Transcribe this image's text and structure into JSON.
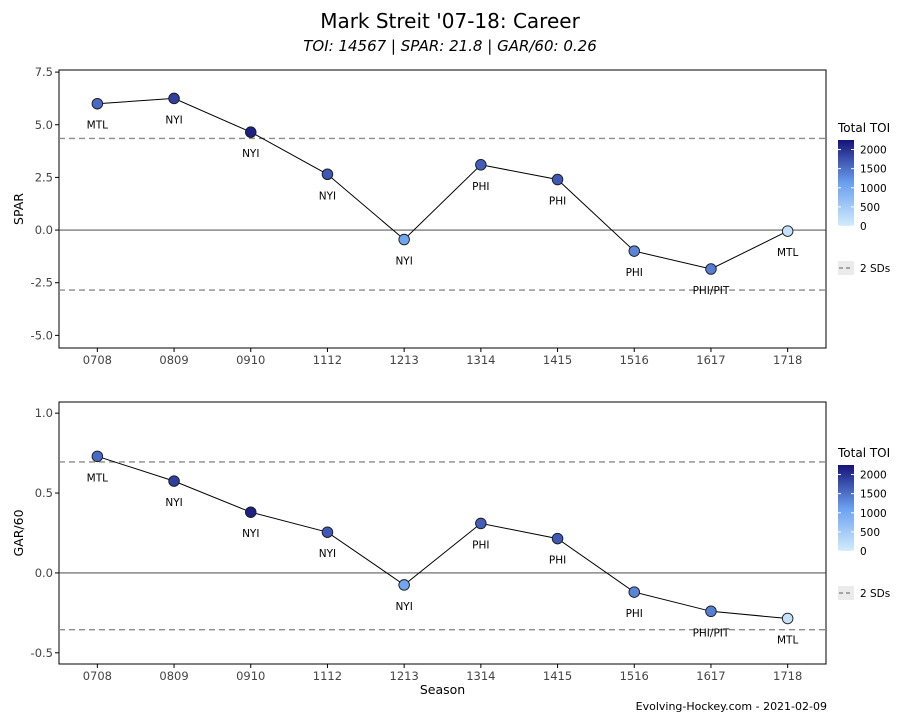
{
  "title": "Mark Streit '07-18: Career",
  "subtitle": "TOI: 14567 | SPAR: 21.8 | GAR/60: 0.26",
  "caption": "Evolving-Hockey.com - 2021-02-09",
  "colors": {
    "line": "#000000",
    "sd_line": "#8c8c8c",
    "zero_line": "#333333",
    "point_stroke": "#1a1a1a",
    "toi_low": "#d3ecfc",
    "toi_mid": "#6aa0f0",
    "toi_high": "#15137a"
  },
  "chart_data": [
    {
      "type": "line",
      "ylabel": "SPAR",
      "xlabel": "",
      "categories": [
        "0708",
        "0809",
        "0910",
        "1112",
        "1213",
        "1314",
        "1415",
        "1516",
        "1617",
        "1718"
      ],
      "values": [
        6.0,
        6.25,
        4.65,
        2.65,
        -0.45,
        3.1,
        2.4,
        -1.0,
        -1.85,
        -0.05
      ],
      "teams": [
        "MTL",
        "NYI",
        "NYI",
        "NYI",
        "NYI",
        "PHI",
        "PHI",
        "PHI",
        "PHI/PIT",
        "MTL"
      ],
      "toi": [
        1560,
        1900,
        2150,
        1700,
        1050,
        1650,
        1700,
        1350,
        1400,
        150
      ],
      "ylim": [
        -5.6,
        7.6
      ],
      "yticks": [
        -5.0,
        -2.5,
        0.0,
        2.5,
        5.0,
        7.5
      ],
      "ytick_labels": [
        "-5.0",
        "-2.5",
        "0.0",
        "2.5",
        "5.0",
        "7.5"
      ],
      "sd_lines": [
        4.35,
        -2.85
      ],
      "zero_line": 0,
      "legend": {
        "title": "Total TOI",
        "ticks": [
          0,
          500,
          1000,
          1500,
          2000
        ],
        "range": [
          0,
          2250
        ],
        "sd_label": "2 SDs",
        "position": "right"
      }
    },
    {
      "type": "line",
      "ylabel": "GAR/60",
      "xlabel": "Season",
      "categories": [
        "0708",
        "0809",
        "0910",
        "1112",
        "1213",
        "1314",
        "1415",
        "1516",
        "1617",
        "1718"
      ],
      "values": [
        0.73,
        0.575,
        0.38,
        0.255,
        -0.075,
        0.31,
        0.215,
        -0.12,
        -0.24,
        -0.285
      ],
      "teams": [
        "MTL",
        "NYI",
        "NYI",
        "NYI",
        "NYI",
        "PHI",
        "PHI",
        "PHI",
        "PHI/PIT",
        "MTL"
      ],
      "toi": [
        1560,
        1900,
        2150,
        1700,
        1050,
        1650,
        1700,
        1350,
        1400,
        150
      ],
      "ylim": [
        -0.57,
        1.07
      ],
      "yticks": [
        -0.5,
        0.0,
        0.5,
        1.0
      ],
      "ytick_labels": [
        "-0.5",
        "0.0",
        "0.5",
        "1.0"
      ],
      "sd_lines": [
        0.695,
        -0.355
      ],
      "zero_line": 0,
      "legend": {
        "title": "Total TOI",
        "ticks": [
          0,
          500,
          1000,
          1500,
          2000
        ],
        "range": [
          0,
          2250
        ],
        "sd_label": "2 SDs",
        "position": "right"
      }
    }
  ]
}
